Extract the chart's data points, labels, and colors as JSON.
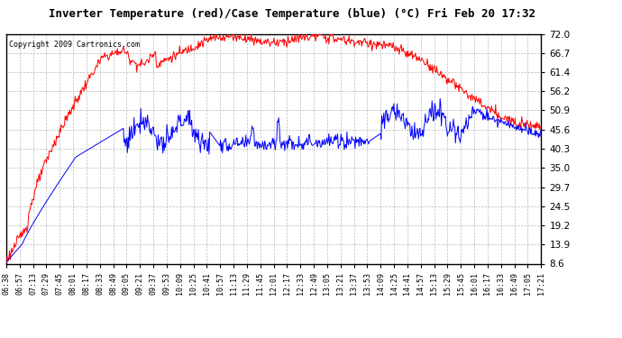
{
  "title": "Inverter Temperature (red)/Case Temperature (blue) (°C) Fri Feb 20 17:32",
  "copyright": "Copyright 2009 Cartronics.com",
  "ylabel_right_ticks": [
    8.6,
    13.9,
    19.2,
    24.5,
    29.7,
    35.0,
    40.3,
    45.6,
    50.9,
    56.2,
    61.4,
    66.7,
    72.0
  ],
  "ymin": 8.6,
  "ymax": 72.0,
  "background_color": "#ffffff",
  "plot_bg_color": "#ffffff",
  "grid_color": "#bbbbbb",
  "red_color": "#ff0000",
  "blue_color": "#0000ff",
  "x_labels": [
    "06:38",
    "06:57",
    "07:13",
    "07:29",
    "07:45",
    "08:01",
    "08:17",
    "08:33",
    "08:49",
    "09:05",
    "09:21",
    "09:37",
    "09:53",
    "10:09",
    "10:25",
    "10:41",
    "10:57",
    "11:13",
    "11:29",
    "11:45",
    "12:01",
    "12:17",
    "12:33",
    "12:49",
    "13:05",
    "13:21",
    "13:37",
    "13:53",
    "14:09",
    "14:25",
    "14:41",
    "14:57",
    "15:13",
    "15:29",
    "15:45",
    "16:01",
    "16:17",
    "16:33",
    "16:49",
    "17:05",
    "17:21"
  ]
}
